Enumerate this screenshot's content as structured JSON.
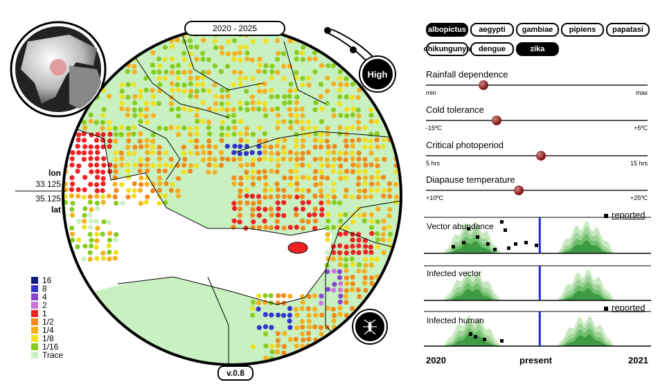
{
  "header": {
    "date_range": "2020 - 2025",
    "risk_level": "High",
    "version": "v.0.8"
  },
  "coords": {
    "lon_label": "lon",
    "lon_value": "33.125",
    "lat_value": "35.125",
    "lat_label": "lat"
  },
  "species_buttons": [
    {
      "label": "albopictus",
      "active": true
    },
    {
      "label": "aegypti",
      "active": false
    },
    {
      "label": "gambiae",
      "active": false
    },
    {
      "label": "pipiens",
      "active": false
    },
    {
      "label": "papatasi",
      "active": false
    }
  ],
  "disease_buttons": [
    {
      "label": "chikungunya",
      "active": false
    },
    {
      "label": "dengue",
      "active": false
    },
    {
      "label": "zika",
      "active": true
    }
  ],
  "sliders": [
    {
      "label": "Rainfall dependence",
      "min": "min",
      "max": "max",
      "value": 0.26
    },
    {
      "label": "Cold tolerance",
      "min": "-15ºC",
      "max": "+5ºC",
      "value": 0.32
    },
    {
      "label": "Critical photoperiod",
      "min": "5 hrs",
      "max": "15 hrs",
      "value": 0.52
    },
    {
      "label": "Diapause temperature",
      "min": "+10ºC",
      "max": "+25ºC",
      "value": 0.42
    }
  ],
  "charts": {
    "vector_abundance": {
      "title": "Vector abundance",
      "reported_label": "reported"
    },
    "infected_vector": {
      "title": "Infected vector"
    },
    "infected_human": {
      "title": "Infected human",
      "reported_label": "reported"
    }
  },
  "timeline": {
    "start": "2020",
    "present": "present",
    "end": "2021",
    "present_fraction": 0.51
  },
  "legend": [
    {
      "label": "16",
      "color": "#0a1a7a"
    },
    {
      "label": "8",
      "color": "#3333cc"
    },
    {
      "label": "4",
      "color": "#8844cc"
    },
    {
      "label": "2",
      "color": "#cc77dd"
    },
    {
      "label": "1",
      "color": "#ee2222"
    },
    {
      "label": "1/2",
      "color": "#f08a1a"
    },
    {
      "label": "1/4",
      "color": "#f5b020"
    },
    {
      "label": "1/8",
      "color": "#f0e020"
    },
    {
      "label": "1/16",
      "color": "#88cc22"
    },
    {
      "label": "Trace",
      "color": "#c8f0c0"
    }
  ],
  "icons": {
    "globe": "globe-icon",
    "mosquito": "mosquito-icon",
    "risk_badge": "risk-level-icon"
  }
}
